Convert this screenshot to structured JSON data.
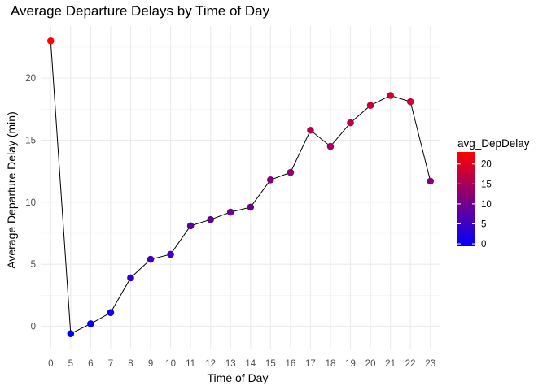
{
  "chart_data": {
    "type": "line",
    "title": "Average Departure Delays by Time of Day",
    "xlabel": "Time of Day",
    "ylabel": "Average Departure Delay (min)",
    "categories": [
      "0",
      "5",
      "6",
      "7",
      "8",
      "9",
      "10",
      "11",
      "12",
      "13",
      "14",
      "15",
      "16",
      "17",
      "18",
      "19",
      "20",
      "21",
      "22",
      "23"
    ],
    "values": [
      23.0,
      -0.6,
      0.2,
      1.1,
      3.9,
      5.4,
      5.8,
      8.1,
      8.6,
      9.2,
      9.6,
      11.8,
      12.4,
      15.8,
      14.5,
      16.4,
      17.8,
      18.6,
      18.1,
      11.7
    ],
    "y_ticks": [
      0,
      5,
      10,
      15,
      20
    ],
    "ylim": [
      -1.8,
      24.2
    ],
    "grid": true,
    "line_color": "#000000",
    "color_scale": {
      "title": "avg_DepDelay",
      "low_color": "#0000FF",
      "high_color": "#FF0000",
      "min": -0.6,
      "max": 23.0,
      "breaks": [
        0,
        5,
        10,
        15,
        20
      ]
    },
    "legend_position": "right"
  }
}
